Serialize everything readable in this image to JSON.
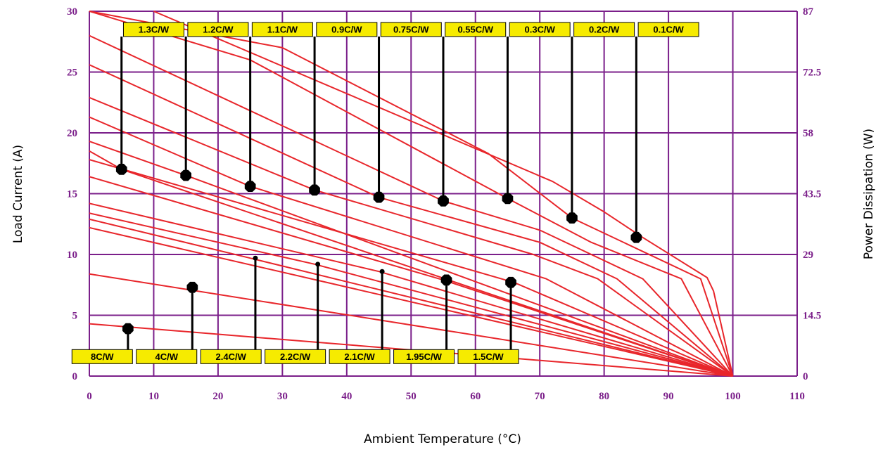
{
  "chart_data": {
    "type": "line",
    "title": "",
    "xlabel": "Ambient Temperature (°C)",
    "ylabel": "Load Current (A)",
    "y2label": "Power Dissipation (W)",
    "xlim": [
      0,
      110
    ],
    "ylim": [
      0,
      30
    ],
    "x_ticks": [
      "0",
      "10",
      "20",
      "30",
      "40",
      "50",
      "60",
      "70",
      "80",
      "90",
      "100",
      "110"
    ],
    "y_ticks": [
      "0",
      "5",
      "10",
      "15",
      "20",
      "25",
      "30"
    ],
    "y2_ticks": [
      "0",
      "14.5",
      "29",
      "43.5",
      "58",
      "72.5",
      "87"
    ],
    "grid": true,
    "colors": {
      "series": "#e8262b",
      "grid": "#7b1f8a",
      "tick_text": "#7b1f8a",
      "label_fill": "#f6eb00"
    },
    "series": [
      {
        "label": "0.1C/W",
        "points": [
          [
            10,
            30
          ],
          [
            72,
            16
          ],
          [
            80,
            13.5
          ],
          [
            86,
            11.4
          ],
          [
            96,
            8.1
          ],
          [
            97,
            7
          ],
          [
            100,
            0
          ]
        ],
        "marker": [
          85,
          11.4,
          "big"
        ],
        "label_pos": [
          90,
          28.5
        ]
      },
      {
        "label": "0.2C/W",
        "points": [
          [
            0,
            30
          ],
          [
            30,
            27
          ],
          [
            62,
            18.3
          ],
          [
            75,
            13
          ],
          [
            95,
            8
          ],
          [
            100,
            0
          ]
        ],
        "marker": [
          75,
          13,
          "big"
        ],
        "label_pos": [
          80,
          28.5
        ]
      },
      {
        "label": "0.3C/W",
        "points": [
          [
            0,
            30
          ],
          [
            25,
            26
          ],
          [
            65,
            14.6
          ],
          [
            78,
            11
          ],
          [
            92,
            8
          ],
          [
            100,
            0
          ]
        ],
        "marker": [
          65,
          14.6,
          "big"
        ],
        "label_pos": [
          70,
          28.5
        ]
      },
      {
        "label": "0.55C/W",
        "points": [
          [
            0,
            28
          ],
          [
            55,
            14.4
          ],
          [
            70,
            12
          ],
          [
            86,
            8
          ],
          [
            100,
            0
          ]
        ],
        "marker": [
          55,
          14.4,
          "big"
        ],
        "label_pos": [
          60,
          28.5
        ]
      },
      {
        "label": "0.75C/W",
        "points": [
          [
            0,
            25.6
          ],
          [
            45,
            14.7
          ],
          [
            70,
            11
          ],
          [
            82,
            8
          ],
          [
            100,
            0
          ]
        ],
        "marker": [
          45,
          14.7,
          "big"
        ],
        "label_pos": [
          50,
          28.5
        ]
      },
      {
        "label": "0.9C/W",
        "points": [
          [
            0,
            22.9
          ],
          [
            35,
            15.3
          ],
          [
            69,
            10
          ],
          [
            79,
            8
          ],
          [
            100,
            0
          ]
        ],
        "marker": [
          35,
          15.3,
          "big"
        ],
        "label_pos": [
          40,
          28.5
        ]
      },
      {
        "label": "1.1C/W",
        "points": [
          [
            0,
            21.3
          ],
          [
            25,
            15.6
          ],
          [
            71,
            8
          ],
          [
            100,
            0
          ]
        ],
        "marker": [
          25,
          15.6,
          "big"
        ],
        "label_pos": [
          30,
          28.5
        ]
      },
      {
        "label": "1.2C/W",
        "points": [
          [
            0,
            19.3
          ],
          [
            15,
            16.5
          ],
          [
            100,
            0
          ]
        ],
        "marker": [
          15,
          16.5,
          "big"
        ],
        "label_pos": [
          20,
          28.5
        ]
      },
      {
        "label": "1.3C/W",
        "points": [
          [
            0,
            18.5
          ],
          [
            5,
            17
          ],
          [
            100,
            0
          ]
        ],
        "marker": [
          5,
          17,
          "big"
        ],
        "label_pos": [
          10,
          28.5
        ]
      },
      {
        "label": "1.5C/W",
        "points": [
          [
            0,
            17.8
          ],
          [
            66,
            7.7
          ],
          [
            100,
            0
          ]
        ],
        "marker": [
          65.5,
          7.7,
          "big"
        ],
        "label_pos": [
          62,
          1.6
        ]
      },
      {
        "label": "1.95C/W",
        "points": [
          [
            0,
            16.4
          ],
          [
            55,
            7.9
          ],
          [
            100,
            0
          ]
        ],
        "marker": [
          55.5,
          7.9,
          "big"
        ],
        "label_pos": [
          52,
          1.6
        ]
      },
      {
        "label": "2.1C/W",
        "points": [
          [
            0,
            14.2
          ],
          [
            45,
            8.6
          ],
          [
            100,
            0
          ]
        ],
        "marker": [
          45.5,
          8.6,
          "small"
        ],
        "label_pos": [
          42,
          1.6
        ]
      },
      {
        "label": "2.2C/W",
        "points": [
          [
            0,
            13.4
          ],
          [
            35,
            9.2
          ],
          [
            100,
            0
          ]
        ],
        "marker": [
          35.5,
          9.2,
          "small"
        ],
        "label_pos": [
          32,
          1.6
        ]
      },
      {
        "label": "2.4C/W",
        "points": [
          [
            0,
            12.9
          ],
          [
            25,
            9.7
          ],
          [
            100,
            0
          ]
        ],
        "marker": [
          25.8,
          9.7,
          "small"
        ],
        "label_pos": [
          22,
          1.6
        ]
      },
      {
        "label": "",
        "points": [
          [
            0,
            12.2
          ],
          [
            100,
            0
          ]
        ]
      },
      {
        "label": "4C/W",
        "points": [
          [
            0,
            8.4
          ],
          [
            100,
            0
          ]
        ],
        "marker": [
          16,
          7.3,
          "big"
        ],
        "label_pos": [
          12,
          1.6
        ]
      },
      {
        "label": "8C/W",
        "points": [
          [
            0,
            4.3
          ],
          [
            100,
            0
          ]
        ],
        "marker": [
          6,
          3.9,
          "big"
        ],
        "label_pos": [
          2,
          1.6
        ]
      }
    ]
  }
}
